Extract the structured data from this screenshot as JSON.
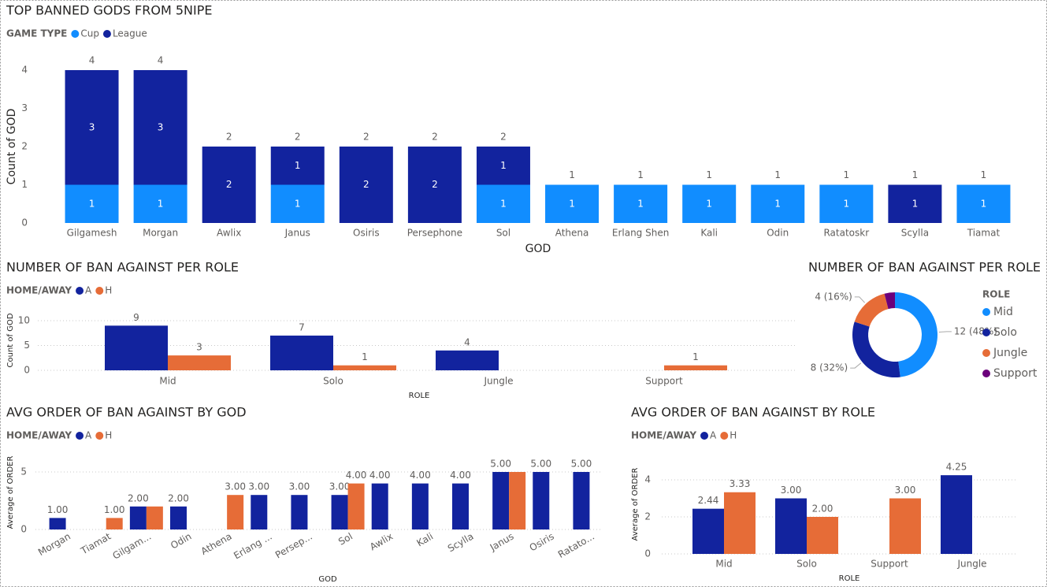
{
  "chart_data": [
    {
      "type": "stacked_bar",
      "title": "TOP BANNED GODS FROM 5NIPE",
      "legend_title": "GAME TYPE",
      "x_label": "GOD",
      "y_label": "Count of GOD",
      "categories": [
        "Gilgamesh",
        "Morgan",
        "Awlix",
        "Janus",
        "Osiris",
        "Persephone",
        "Sol",
        "Athena",
        "Erlang Shen",
        "Kali",
        "Odin",
        "Ratatoskr",
        "Scylla",
        "Tiamat"
      ],
      "series": [
        {
          "name": "Cup",
          "color": "#118DFF",
          "values": [
            1,
            1,
            null,
            1,
            null,
            null,
            1,
            1,
            1,
            1,
            1,
            1,
            null,
            1
          ]
        },
        {
          "name": "League",
          "color": "#12239E",
          "values": [
            3,
            3,
            2,
            1,
            2,
            2,
            1,
            null,
            null,
            null,
            null,
            null,
            1,
            null
          ]
        }
      ],
      "totals": [
        4,
        4,
        2,
        2,
        2,
        2,
        2,
        1,
        1,
        1,
        1,
        1,
        1,
        1
      ],
      "ylim": [
        0,
        4
      ],
      "yticks": [
        0,
        1,
        2,
        3,
        4
      ],
      "grid": false
    },
    {
      "type": "grouped_bar",
      "title": "NUMBER OF BAN AGAINST PER ROLE",
      "legend_title": "HOME/AWAY",
      "x_label": "ROLE",
      "y_label": "Count of GOD",
      "categories": [
        "Mid",
        "Solo",
        "Jungle",
        "Support"
      ],
      "series": [
        {
          "name": "A",
          "color": "#12239E",
          "values": [
            9,
            7,
            4,
            null
          ]
        },
        {
          "name": "H",
          "color": "#E66C37",
          "values": [
            3,
            1,
            null,
            1
          ]
        }
      ],
      "ylim": [
        0,
        10
      ],
      "yticks": [
        0,
        5,
        10
      ],
      "grid": true
    },
    {
      "type": "donut",
      "title": "NUMBER OF BAN AGAINST PER ROLE",
      "legend_title": "ROLE",
      "categories": [
        "Mid",
        "Solo",
        "Jungle",
        "Support"
      ],
      "values": [
        12,
        8,
        4,
        1
      ],
      "value_labels": [
        "12 (48%)",
        "8 (32%)",
        "4 (16%)",
        null
      ],
      "colors": [
        "#118DFF",
        "#12239E",
        "#E66C37",
        "#6B007B"
      ]
    },
    {
      "type": "grouped_bar",
      "title": "AVG ORDER OF BAN AGAINST BY GOD",
      "legend_title": "HOME/AWAY",
      "x_label": "GOD",
      "y_label": "Average of ORDER",
      "categories": [
        "Morgan",
        "Tiamat",
        "Gilgam...",
        "Odin",
        "Athena",
        "Erlang ...",
        "Persep...",
        "Sol",
        "Awlix",
        "Kali",
        "Scylla",
        "Janus",
        "Osiris",
        "Ratato..."
      ],
      "series": [
        {
          "name": "A",
          "color": "#12239E",
          "values": [
            1,
            null,
            2,
            2,
            null,
            3,
            3,
            3,
            4,
            4,
            4,
            5,
            5,
            5
          ],
          "value_labels": [
            "1.00",
            null,
            "2.00",
            "2.00",
            null,
            "3.00",
            "3.00",
            "3.00",
            "4.00",
            "4.00",
            "4.00",
            "5.00",
            "5.00",
            "5.00"
          ]
        },
        {
          "name": "H",
          "color": "#E66C37",
          "values": [
            null,
            1,
            2,
            null,
            3,
            null,
            null,
            4,
            null,
            null,
            null,
            5,
            null,
            null
          ],
          "value_labels": [
            null,
            "1.00",
            null,
            null,
            "3.00",
            null,
            null,
            "4.00",
            null,
            null,
            null,
            null,
            null,
            null
          ]
        }
      ],
      "ylim": [
        0,
        5
      ],
      "yticks": [
        0,
        5
      ],
      "grid": true
    },
    {
      "type": "grouped_bar",
      "title": "AVG ORDER OF BAN AGAINST BY ROLE",
      "legend_title": "HOME/AWAY",
      "x_label": "ROLE",
      "y_label": "Average of ORDER",
      "categories": [
        "Mid",
        "Solo",
        "Support",
        "Jungle"
      ],
      "series": [
        {
          "name": "A",
          "color": "#12239E",
          "values": [
            2.44,
            3,
            null,
            4.25
          ],
          "value_labels": [
            "2.44",
            "3.00",
            null,
            "4.25"
          ]
        },
        {
          "name": "H",
          "color": "#E66C37",
          "values": [
            3.33,
            2,
            3,
            null
          ],
          "value_labels": [
            "3.33",
            "2.00",
            "3.00",
            null
          ]
        }
      ],
      "ylim": [
        0,
        4
      ],
      "yticks": [
        0,
        2,
        4
      ],
      "grid": true
    }
  ]
}
